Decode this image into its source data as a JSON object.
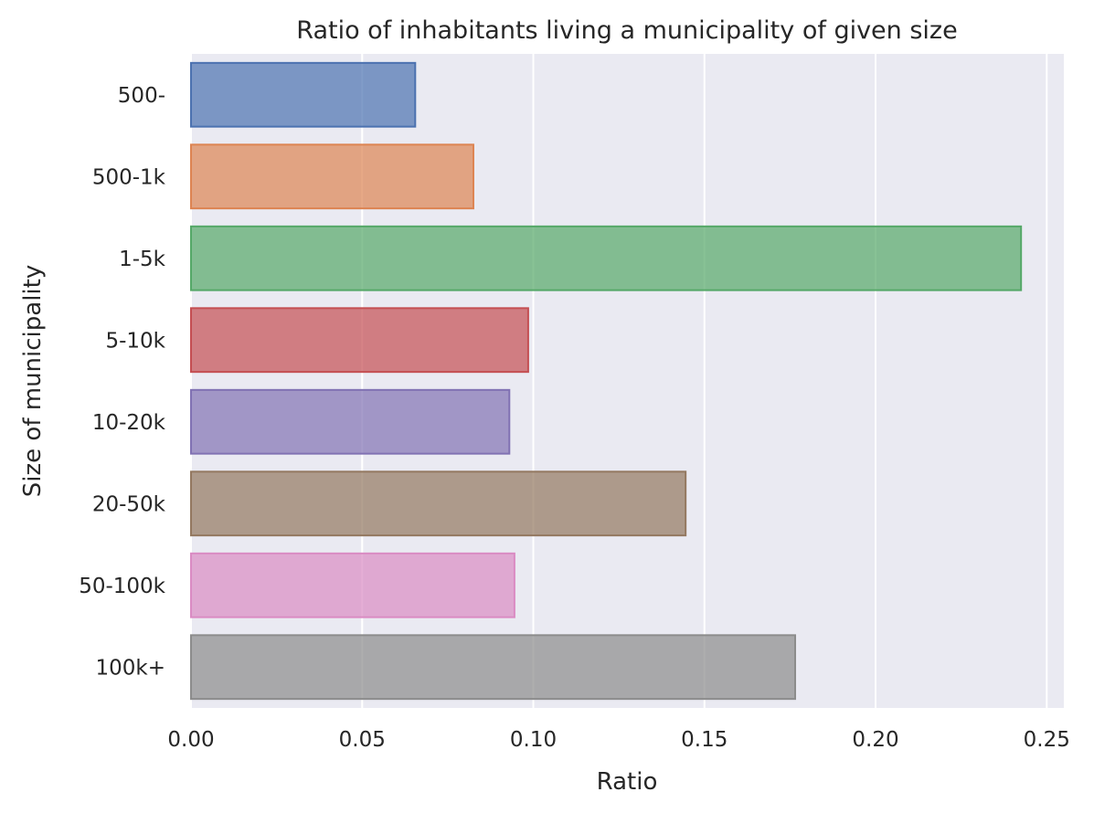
{
  "chart_data": {
    "type": "bar",
    "orientation": "horizontal",
    "title": "Ratio of inhabitants living a municipality of given size",
    "xlabel": "Ratio",
    "ylabel": "Size of municipality",
    "xlim": [
      0,
      0.255
    ],
    "xticks": [
      "0.00",
      "0.05",
      "0.10",
      "0.15",
      "0.20",
      "0.25"
    ],
    "grid": true,
    "categories": [
      "500-",
      "500-1k",
      "1-5k",
      "5-10k",
      "10-20k",
      "20-50k",
      "50-100k",
      "100k+"
    ],
    "values": [
      0.0655,
      0.0825,
      0.2425,
      0.0985,
      0.093,
      0.1445,
      0.0945,
      0.1765
    ],
    "colors": [
      "#4c72b0",
      "#dd8452",
      "#55a868",
      "#c44e52",
      "#8172b3",
      "#937860",
      "#da8bc3",
      "#8c8c8c"
    ]
  }
}
